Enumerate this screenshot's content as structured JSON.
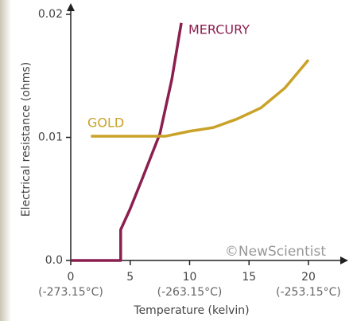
{
  "chart_data": {
    "type": "line",
    "x_label": "Temperature (kelvin)",
    "y_label": "Electrical resistance (ohms)",
    "credit": "©NewScientist",
    "xlim": [
      0,
      20
    ],
    "ylim": [
      0,
      0.02
    ],
    "xticks": [
      0,
      5,
      10,
      15,
      20
    ],
    "secondary_xticks": [
      {
        "value": 0,
        "label": "(-273.15°C)"
      },
      {
        "value": 10,
        "label": "(-263.15°C)"
      },
      {
        "value": 20,
        "label": "(-253.15°C)"
      }
    ],
    "yticks": [
      {
        "value": 0,
        "label": "0.0"
      },
      0.01,
      0.02
    ],
    "series": [
      {
        "name": "MERCURY",
        "color": "#8b1f4f",
        "x": [
          0,
          4.2,
          4.2,
          5,
          6,
          7.5,
          8.5,
          9.3
        ],
        "values": [
          0,
          0,
          0.0025,
          0.0042,
          0.0066,
          0.0103,
          0.0147,
          0.0193
        ]
      },
      {
        "name": "GOLD",
        "color": "#c9a227",
        "x": [
          1.7,
          4,
          6,
          8,
          10,
          12,
          14,
          16,
          18,
          20
        ],
        "values": [
          0.0101,
          0.0101,
          0.0101,
          0.0101,
          0.0105,
          0.0108,
          0.0115,
          0.0124,
          0.014,
          0.0163
        ]
      }
    ]
  }
}
